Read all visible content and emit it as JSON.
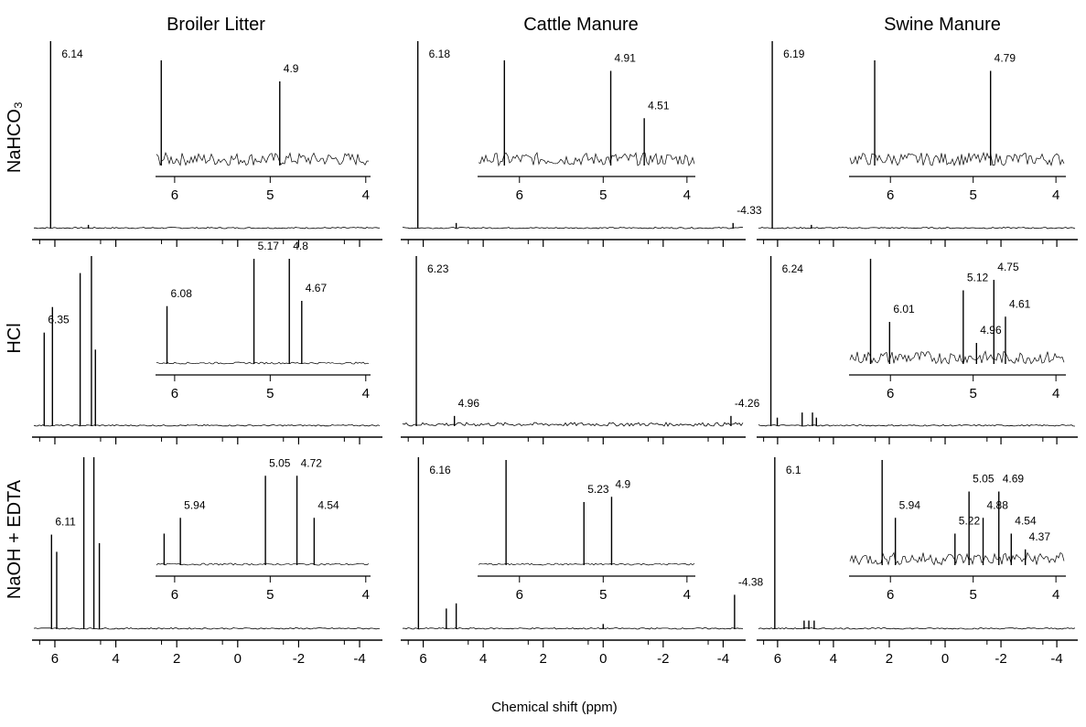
{
  "column_titles": [
    "Broiler Litter",
    "Cattle Manure",
    "Swine Manure"
  ],
  "row_labels": [
    "NaHCO₃",
    "HCl",
    "NaOH + EDTA"
  ],
  "x_axis": {
    "label": "Chemical shift (ppm)",
    "xlim": [
      6.75,
      -4.75
    ],
    "xticks": [
      6,
      4,
      2,
      0,
      -2,
      -4
    ]
  },
  "chart_data": [
    {
      "type": "spectrum",
      "x": [
        6.14,
        4.9
      ],
      "values": [
        100,
        2
      ],
      "labels": [
        6.14
      ],
      "inset": {
        "xlim": [
          6.2,
          3.95
        ],
        "xticks": [
          6,
          5,
          4
        ],
        "x": [
          6.14,
          4.9
        ],
        "values": [
          100,
          80
        ],
        "labels": [
          4.9
        ]
      }
    },
    {
      "type": "spectrum",
      "x": [
        6.18,
        4.9,
        -4.33
      ],
      "values": [
        100,
        3,
        3
      ],
      "labels": [
        6.18,
        -4.33
      ],
      "inset": {
        "xlim": [
          6.5,
          3.9
        ],
        "xticks": [
          6,
          5,
          4
        ],
        "x": [
          6.18,
          4.91,
          4.51
        ],
        "values": [
          100,
          90,
          45
        ],
        "labels": [
          4.91,
          4.51
        ]
      }
    },
    {
      "type": "spectrum",
      "x": [
        6.19,
        4.79
      ],
      "values": [
        100,
        2
      ],
      "labels": [
        6.19
      ],
      "inset": {
        "xlim": [
          6.5,
          3.88
        ],
        "xticks": [
          6,
          5,
          4
        ],
        "x": [
          6.19,
          4.79
        ],
        "values": [
          100,
          90
        ],
        "labels": [
          4.79
        ]
      }
    },
    {
      "type": "spectrum",
      "x": [
        6.35,
        6.08,
        5.17,
        4.8,
        4.67
      ],
      "values": [
        55,
        70,
        90,
        100,
        45
      ],
      "labels": [
        6.35
      ],
      "inset": {
        "xlim": [
          6.2,
          3.95
        ],
        "xticks": [
          6,
          5,
          4
        ],
        "x": [
          6.08,
          5.17,
          4.8,
          4.67
        ],
        "values": [
          55,
          100,
          100,
          60
        ],
        "labels": [
          6.08,
          5.17,
          4.8,
          4.67
        ]
      }
    },
    {
      "type": "spectrum",
      "x": [
        6.23,
        4.96,
        -4.26
      ],
      "values": [
        100,
        6,
        6
      ],
      "labels": [
        6.23,
        4.96,
        -4.26
      ]
    },
    {
      "type": "spectrum",
      "x": [
        6.24,
        6.01,
        5.12,
        4.75,
        4.61
      ],
      "values": [
        100,
        5,
        8,
        8,
        5
      ],
      "labels": [
        6.24
      ],
      "inset": {
        "xlim": [
          6.5,
          3.88
        ],
        "xticks": [
          6,
          5,
          4
        ],
        "x": [
          6.24,
          6.01,
          5.12,
          4.96,
          4.75,
          4.61
        ],
        "values": [
          100,
          40,
          70,
          20,
          80,
          45
        ],
        "labels": [
          6.01,
          5.12,
          4.96,
          4.75,
          4.61
        ]
      }
    },
    {
      "type": "spectrum",
      "x": [
        6.11,
        5.94,
        5.05,
        4.72,
        4.54
      ],
      "values": [
        55,
        45,
        100,
        100,
        50
      ],
      "labels": [
        6.11
      ],
      "inset": {
        "xlim": [
          6.2,
          3.95
        ],
        "xticks": [
          6,
          5,
          4
        ],
        "x": [
          6.11,
          5.94,
          5.05,
          4.72,
          4.54
        ],
        "values": [
          30,
          45,
          85,
          85,
          45
        ],
        "labels": [
          5.94,
          5.05,
          4.72,
          4.54
        ]
      }
    },
    {
      "type": "spectrum",
      "x": [
        6.16,
        5.23,
        4.9,
        0,
        -4.38
      ],
      "values": [
        100,
        12,
        15,
        3,
        20
      ],
      "labels": [
        6.16,
        -4.38
      ],
      "inset": {
        "xlim": [
          6.5,
          3.9
        ],
        "xticks": [
          6,
          5,
          4
        ],
        "x": [
          6.16,
          5.23,
          4.9
        ],
        "values": [
          100,
          60,
          65
        ],
        "labels": [
          5.23,
          4.9
        ]
      }
    },
    {
      "type": "spectrum",
      "x": [
        6.1,
        5.05,
        4.88,
        4.69
      ],
      "values": [
        100,
        5,
        5,
        5
      ],
      "labels": [
        6.1
      ],
      "inset": {
        "xlim": [
          6.5,
          3.88
        ],
        "xticks": [
          6,
          5,
          4
        ],
        "x": [
          6.1,
          5.94,
          5.22,
          5.05,
          4.88,
          4.69,
          4.54,
          4.37
        ],
        "values": [
          100,
          45,
          30,
          70,
          45,
          70,
          30,
          15
        ],
        "labels": [
          5.94,
          5.22,
          5.05,
          4.88,
          4.69,
          4.54,
          4.37
        ]
      }
    }
  ]
}
